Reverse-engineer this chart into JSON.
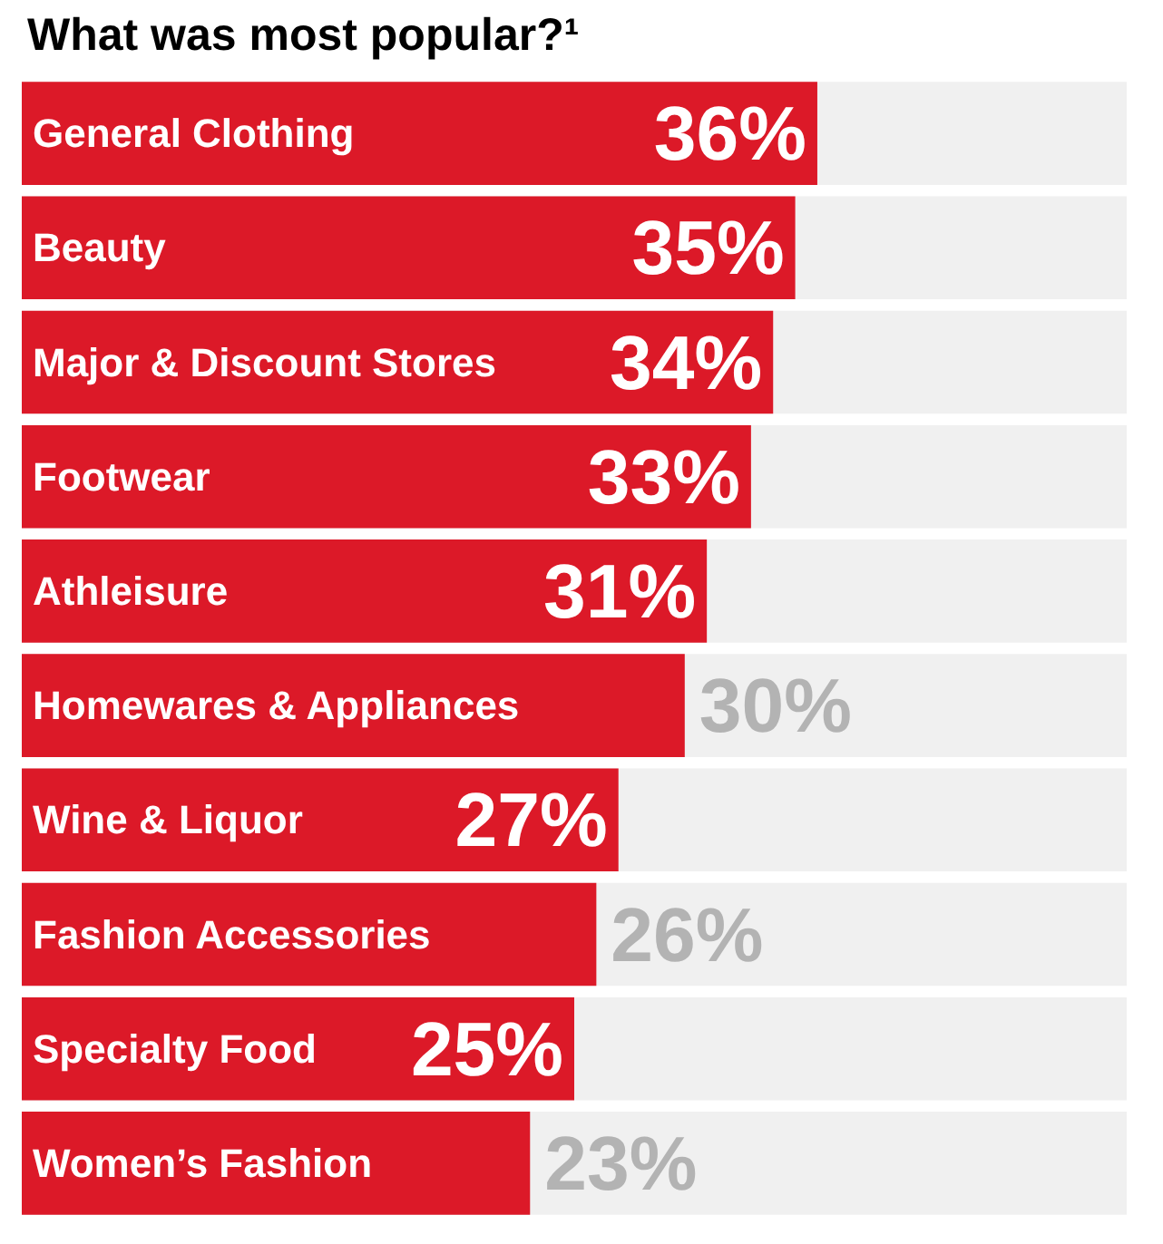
{
  "chart_data": {
    "type": "bar",
    "orientation": "horizontal",
    "title": "What was most popular?¹",
    "categories": [
      "General Clothing",
      "Beauty",
      "Major & Discount Stores",
      "Footwear",
      "Athleisure",
      "Homewares & Appliances",
      "Wine & Liquor",
      "Fashion Accessories",
      "Specialty Food",
      "Women’s Fashion"
    ],
    "values": [
      36,
      35,
      34,
      33,
      31,
      30,
      27,
      26,
      25,
      23
    ],
    "value_labels": [
      "36%",
      "35%",
      "34%",
      "33%",
      "31%",
      "30%",
      "27%",
      "26%",
      "25%",
      "23%"
    ],
    "color": "#dc1928",
    "xlim": [
      0,
      50
    ],
    "tick_labels": "y"
  }
}
